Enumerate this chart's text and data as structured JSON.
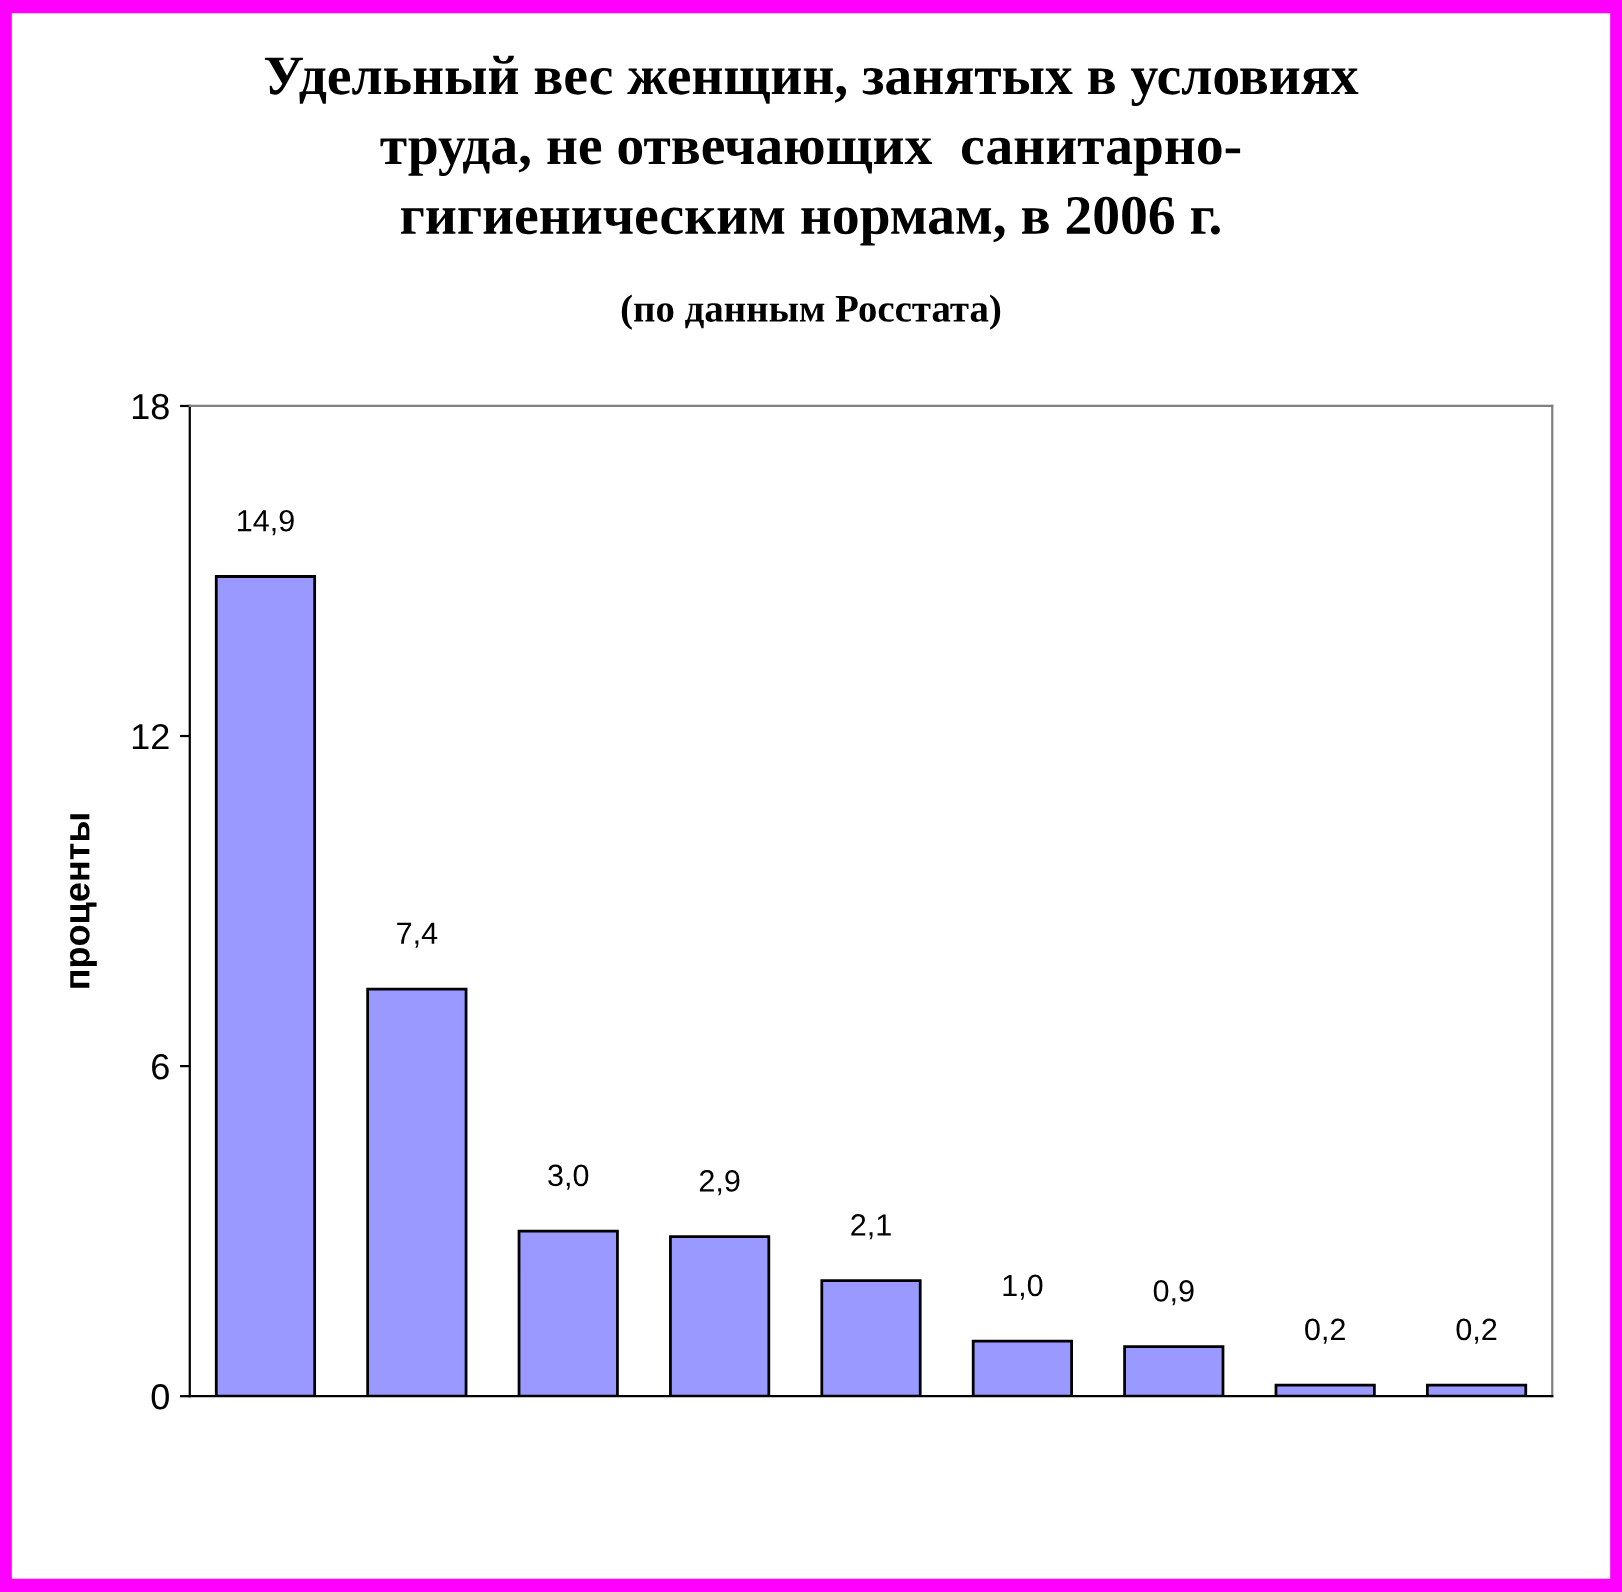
{
  "chart_data": {
    "type": "bar",
    "title": "Удельный вес женщин, занятых в условиях\nтруда, не отвечающих  санитарно-\nгигиеническим нормам, в 2006 г.",
    "subtitle": "(по данным Росстата)",
    "ylabel": "проценты",
    "categories": [
      null,
      null,
      null,
      null,
      null,
      null,
      null,
      null,
      null
    ],
    "values": [
      14.9,
      7.4,
      3.0,
      2.9,
      2.1,
      1.0,
      0.9,
      0.2,
      0.2
    ],
    "value_labels": [
      "14,9",
      "7,4",
      "3,0",
      "2,9",
      "2,1",
      "1,0",
      "0,9",
      "0,2",
      "0,2"
    ],
    "color": "#9999ff",
    "ylim": [
      0,
      18
    ],
    "yticks": [
      0,
      6,
      12,
      18
    ],
    "grid": false,
    "legend": false
  }
}
